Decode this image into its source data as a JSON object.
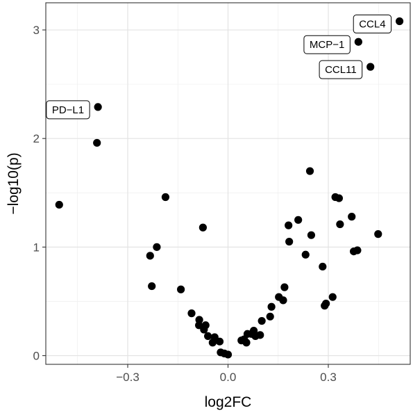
{
  "chart_data": {
    "type": "scatter",
    "xlabel": "log2FC",
    "ylabel": "−log10(p)",
    "xlim": [
      -0.545,
      0.545
    ],
    "ylim": [
      -0.08,
      3.25
    ],
    "x_ticks": [
      -0.3,
      0.0,
      0.3
    ],
    "x_tick_labels": [
      "−0.3",
      "0.0",
      "0.3"
    ],
    "y_ticks": [
      0,
      1,
      2,
      3
    ],
    "y_tick_labels": [
      "0",
      "1",
      "2",
      "3"
    ],
    "grid": true,
    "point_color": "#000000",
    "points": [
      {
        "x": 0.513,
        "y": 3.08,
        "label": "CCL4"
      },
      {
        "x": 0.39,
        "y": 2.89,
        "label": "MCP−1"
      },
      {
        "x": 0.426,
        "y": 2.66,
        "label": "CCL11"
      },
      {
        "x": -0.389,
        "y": 2.29,
        "label": "PD−L1"
      },
      {
        "x": -0.392,
        "y": 1.96
      },
      {
        "x": -0.505,
        "y": 1.39
      },
      {
        "x": -0.187,
        "y": 1.46
      },
      {
        "x": -0.075,
        "y": 1.18
      },
      {
        "x": -0.213,
        "y": 1.0
      },
      {
        "x": -0.233,
        "y": 0.92
      },
      {
        "x": -0.228,
        "y": 0.64
      },
      {
        "x": -0.141,
        "y": 0.61
      },
      {
        "x": -0.109,
        "y": 0.39
      },
      {
        "x": -0.086,
        "y": 0.33
      },
      {
        "x": -0.087,
        "y": 0.28
      },
      {
        "x": -0.072,
        "y": 0.24
      },
      {
        "x": -0.067,
        "y": 0.28
      },
      {
        "x": -0.06,
        "y": 0.18
      },
      {
        "x": -0.046,
        "y": 0.12
      },
      {
        "x": -0.04,
        "y": 0.17
      },
      {
        "x": -0.025,
        "y": 0.13
      },
      {
        "x": -0.022,
        "y": 0.03
      },
      {
        "x": -0.011,
        "y": 0.02
      },
      {
        "x": 0.0,
        "y": 0.01
      },
      {
        "x": 0.04,
        "y": 0.14
      },
      {
        "x": 0.048,
        "y": 0.15
      },
      {
        "x": 0.055,
        "y": 0.12
      },
      {
        "x": 0.058,
        "y": 0.2
      },
      {
        "x": 0.07,
        "y": 0.2
      },
      {
        "x": 0.077,
        "y": 0.23
      },
      {
        "x": 0.082,
        "y": 0.18
      },
      {
        "x": 0.096,
        "y": 0.19
      },
      {
        "x": 0.101,
        "y": 0.32
      },
      {
        "x": 0.126,
        "y": 0.36
      },
      {
        "x": 0.13,
        "y": 0.45
      },
      {
        "x": 0.152,
        "y": 0.54
      },
      {
        "x": 0.165,
        "y": 0.51
      },
      {
        "x": 0.169,
        "y": 0.63
      },
      {
        "x": 0.181,
        "y": 1.2
      },
      {
        "x": 0.183,
        "y": 1.05
      },
      {
        "x": 0.21,
        "y": 1.25
      },
      {
        "x": 0.232,
        "y": 0.93
      },
      {
        "x": 0.245,
        "y": 1.7
      },
      {
        "x": 0.249,
        "y": 1.11
      },
      {
        "x": 0.283,
        "y": 0.82
      },
      {
        "x": 0.289,
        "y": 0.46
      },
      {
        "x": 0.293,
        "y": 0.48
      },
      {
        "x": 0.313,
        "y": 0.54
      },
      {
        "x": 0.321,
        "y": 1.46
      },
      {
        "x": 0.332,
        "y": 1.45
      },
      {
        "x": 0.335,
        "y": 1.21
      },
      {
        "x": 0.37,
        "y": 1.28
      },
      {
        "x": 0.376,
        "y": 0.96
      },
      {
        "x": 0.387,
        "y": 0.97
      },
      {
        "x": 0.449,
        "y": 1.12
      }
    ]
  }
}
